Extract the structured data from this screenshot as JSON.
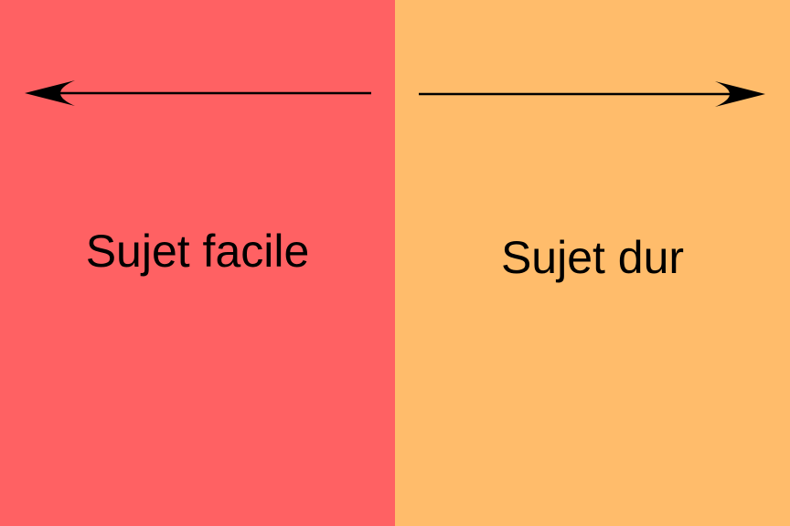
{
  "colors": {
    "left_panel": "#ff6163",
    "right_panel": "#ffbc6b",
    "ink": "#000000"
  },
  "left": {
    "label": "Sujet facile",
    "arrow": "arrow-left-icon"
  },
  "right": {
    "label": "Sujet dur",
    "arrow": "arrow-right-icon"
  }
}
